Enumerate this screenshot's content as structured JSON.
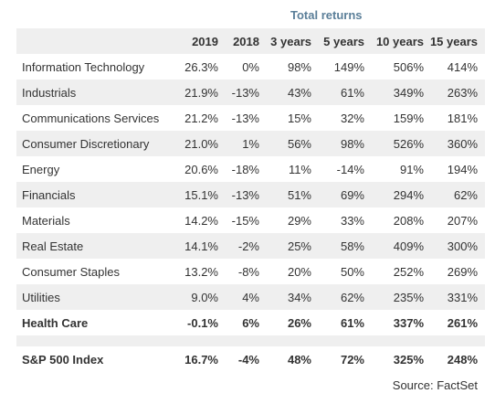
{
  "group_title": "Total returns",
  "columns": [
    "",
    "2019",
    "2018",
    "3 years",
    "5 years",
    "10 years",
    "15 years"
  ],
  "sectors": [
    {
      "name": "Information Technology",
      "values": [
        "26.3%",
        "0%",
        "98%",
        "149%",
        "506%",
        "414%"
      ]
    },
    {
      "name": "Industrials",
      "values": [
        "21.9%",
        "-13%",
        "43%",
        "61%",
        "349%",
        "263%"
      ]
    },
    {
      "name": "Communications Services",
      "values": [
        "21.2%",
        "-13%",
        "15%",
        "32%",
        "159%",
        "181%"
      ]
    },
    {
      "name": "Consumer Discretionary",
      "values": [
        "21.0%",
        "1%",
        "56%",
        "98%",
        "526%",
        "360%"
      ]
    },
    {
      "name": "Energy",
      "values": [
        "20.6%",
        "-18%",
        "11%",
        "-14%",
        "91%",
        "194%"
      ]
    },
    {
      "name": "Financials",
      "values": [
        "15.1%",
        "-13%",
        "51%",
        "69%",
        "294%",
        "62%"
      ]
    },
    {
      "name": "Materials",
      "values": [
        "14.2%",
        "-15%",
        "29%",
        "33%",
        "208%",
        "207%"
      ]
    },
    {
      "name": "Real Estate",
      "values": [
        "14.1%",
        "-2%",
        "25%",
        "58%",
        "409%",
        "300%"
      ]
    },
    {
      "name": "Consumer Staples",
      "values": [
        "13.2%",
        "-8%",
        "20%",
        "50%",
        "252%",
        "269%"
      ]
    },
    {
      "name": "Utilities",
      "values": [
        "9.0%",
        "4%",
        "34%",
        "62%",
        "235%",
        "331%"
      ]
    },
    {
      "name": "Health Care",
      "values": [
        "-0.1%",
        "6%",
        "26%",
        "61%",
        "337%",
        "261%"
      ]
    }
  ],
  "index": {
    "name": "S&P 500 Index",
    "values": [
      "16.7%",
      "-4%",
      "48%",
      "72%",
      "325%",
      "248%"
    ]
  },
  "source": "Source: FactSet"
}
